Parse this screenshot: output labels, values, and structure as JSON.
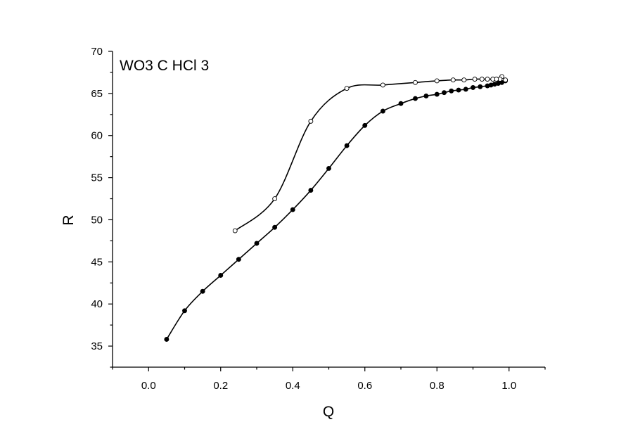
{
  "chart_data": {
    "type": "line",
    "title": "",
    "annotation": "WO3 C HCl 3",
    "xlabel": "Q",
    "ylabel": "R",
    "xlim": [
      -0.1,
      1.1
    ],
    "ylim": [
      32.5,
      70
    ],
    "x_ticks": [
      {
        "value": 0.0,
        "label": "0.0"
      },
      {
        "value": 0.2,
        "label": "0.2"
      },
      {
        "value": 0.4,
        "label": "0.4"
      },
      {
        "value": 0.6,
        "label": "0.6"
      },
      {
        "value": 0.8,
        "label": "0.8"
      },
      {
        "value": 1.0,
        "label": "1.0"
      }
    ],
    "y_ticks": [
      {
        "value": 35,
        "label": "35"
      },
      {
        "value": 40,
        "label": "40"
      },
      {
        "value": 45,
        "label": "45"
      },
      {
        "value": 50,
        "label": "50"
      },
      {
        "value": 55,
        "label": "55"
      },
      {
        "value": 60,
        "label": "60"
      },
      {
        "value": 65,
        "label": "65"
      },
      {
        "value": 70,
        "label": "70"
      }
    ],
    "grid": false,
    "series": [
      {
        "marker": "filled-circle",
        "color": "#000000",
        "points": [
          [
            0.05,
            35.8
          ],
          [
            0.1,
            39.2
          ],
          [
            0.15,
            41.5
          ],
          [
            0.2,
            43.4
          ],
          [
            0.25,
            45.3
          ],
          [
            0.3,
            47.2
          ],
          [
            0.35,
            49.1
          ],
          [
            0.4,
            51.2
          ],
          [
            0.45,
            53.5
          ],
          [
            0.5,
            56.1
          ],
          [
            0.55,
            58.8
          ],
          [
            0.6,
            61.2
          ],
          [
            0.65,
            62.9
          ],
          [
            0.7,
            63.8
          ],
          [
            0.74,
            64.4
          ],
          [
            0.77,
            64.7
          ],
          [
            0.8,
            64.9
          ],
          [
            0.82,
            65.1
          ],
          [
            0.84,
            65.3
          ],
          [
            0.86,
            65.4
          ],
          [
            0.88,
            65.5
          ],
          [
            0.9,
            65.7
          ],
          [
            0.92,
            65.8
          ],
          [
            0.94,
            65.9
          ],
          [
            0.95,
            66.0
          ],
          [
            0.96,
            66.1
          ],
          [
            0.97,
            66.2
          ],
          [
            0.98,
            66.3
          ],
          [
            0.99,
            66.5
          ]
        ]
      },
      {
        "marker": "open-circle",
        "color": "#000000",
        "points": [
          [
            0.99,
            66.6
          ],
          [
            0.98,
            67.0
          ],
          [
            0.975,
            66.7
          ],
          [
            0.965,
            66.7
          ],
          [
            0.955,
            66.7
          ],
          [
            0.94,
            66.7
          ],
          [
            0.925,
            66.7
          ],
          [
            0.905,
            66.7
          ],
          [
            0.875,
            66.6
          ],
          [
            0.845,
            66.6
          ],
          [
            0.8,
            66.5
          ],
          [
            0.74,
            66.3
          ],
          [
            0.65,
            66.0
          ],
          [
            0.55,
            65.6
          ],
          [
            0.45,
            61.7
          ],
          [
            0.35,
            52.5
          ],
          [
            0.24,
            48.7
          ]
        ]
      }
    ]
  }
}
